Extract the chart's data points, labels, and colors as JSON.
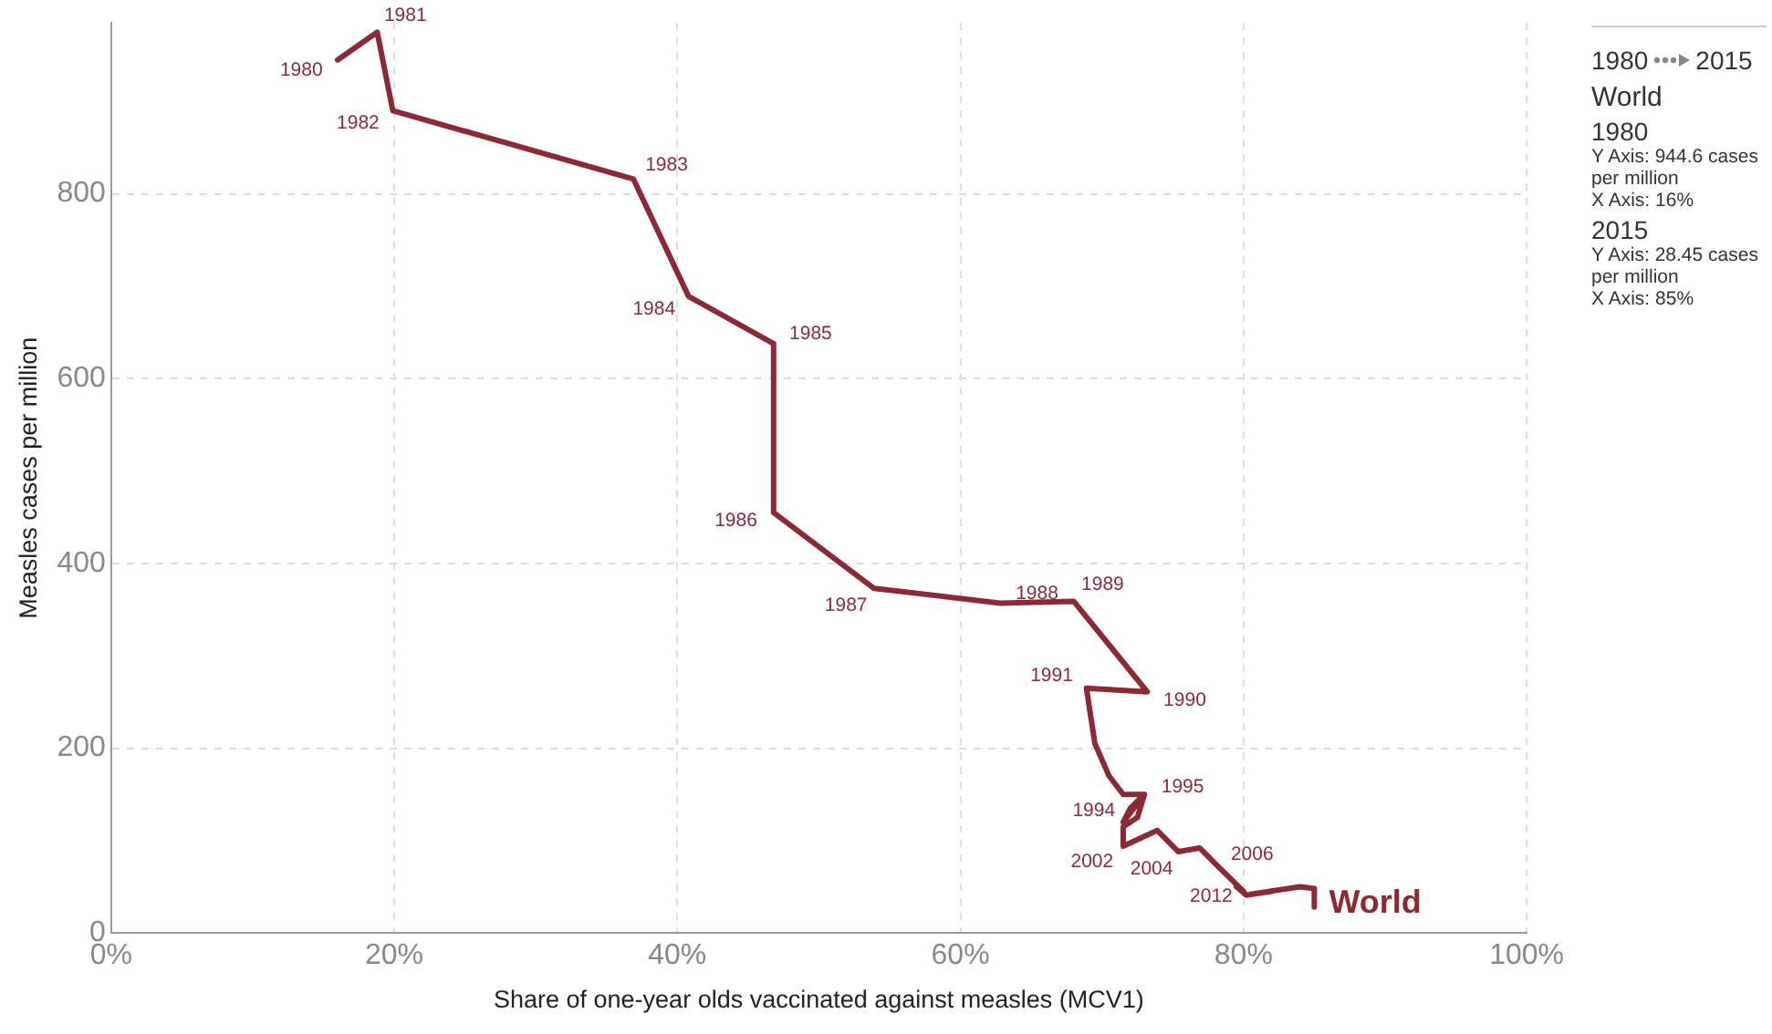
{
  "chart_data": {
    "type": "line",
    "xlabel": "Share of one-year olds vaccinated against measles (MCV1)",
    "ylabel": "Measles cases per million",
    "x": [
      16,
      18.8,
      19.9,
      36.9,
      40.8,
      46.8,
      46.8,
      53.9,
      62.8,
      68.0,
      73.2,
      68.9,
      69.5,
      70.5,
      71.5,
      73,
      72,
      71.5,
      72.5,
      73,
      72.5,
      71.5,
      71.5,
      73.9,
      75.4,
      76.9,
      78,
      79,
      80,
      79.5,
      80.2,
      82,
      80.5,
      84,
      85,
      85
    ],
    "series": [
      {
        "name": "World",
        "color": "#8b2a35",
        "values": [
          945,
          975,
          890,
          816,
          689,
          638,
          455,
          373,
          357,
          359,
          261,
          265,
          205,
          170,
          150,
          150,
          135,
          120,
          140,
          150,
          125,
          115,
          94,
          111,
          88,
          92,
          75,
          60,
          45,
          50,
          41,
          45,
          42,
          50,
          48,
          28
        ]
      }
    ],
    "xlim": [
      0,
      100
    ],
    "xticks": [
      {
        "value": 0,
        "label": "0%"
      },
      {
        "value": 20,
        "label": "20%"
      },
      {
        "value": 40,
        "label": "40%"
      },
      {
        "value": 60,
        "label": "60%"
      },
      {
        "value": 80,
        "label": "80%"
      },
      {
        "value": 100,
        "label": "100%"
      }
    ],
    "ylim": [
      0,
      985
    ],
    "yticks": [
      0,
      200,
      400,
      600,
      800
    ],
    "grid": true,
    "legend": false,
    "marker": "none",
    "line_style": "solid",
    "annotations": [
      {
        "text": "1980",
        "x": 16,
        "y": 945
      },
      {
        "text": "1981",
        "x": 18.8,
        "y": 975
      },
      {
        "text": "1982",
        "x": 19.9,
        "y": 890
      },
      {
        "text": "1983",
        "x": 36.9,
        "y": 816
      },
      {
        "text": "1984",
        "x": 40.8,
        "y": 689
      },
      {
        "text": "1985",
        "x": 46.8,
        "y": 638
      },
      {
        "text": "1986",
        "x": 46.8,
        "y": 455
      },
      {
        "text": "1987",
        "x": 53.9,
        "y": 373
      },
      {
        "text": "1988",
        "x": 62.8,
        "y": 357
      },
      {
        "text": "1989",
        "x": 68.0,
        "y": 359
      },
      {
        "text": "1990",
        "x": 73.2,
        "y": 261
      },
      {
        "text": "1991",
        "x": 68.9,
        "y": 265
      },
      {
        "text": "1994",
        "x": 71.5,
        "y": 150
      },
      {
        "text": "1995",
        "x": 73,
        "y": 150
      },
      {
        "text": "2002",
        "x": 71.5,
        "y": 94
      },
      {
        "text": "2004",
        "x": 75.4,
        "y": 88
      },
      {
        "text": "2006",
        "x": 78,
        "y": 75
      },
      {
        "text": "2012",
        "x": 80.5,
        "y": 42
      },
      "1980",
      "2015",
      "1980",
      "Y Axis: 944.6 cases per million",
      "X Axis: 16%",
      "2015",
      "Y Axis: 28.45 cases per million",
      "X Axis: 85%"
    ]
  }
}
